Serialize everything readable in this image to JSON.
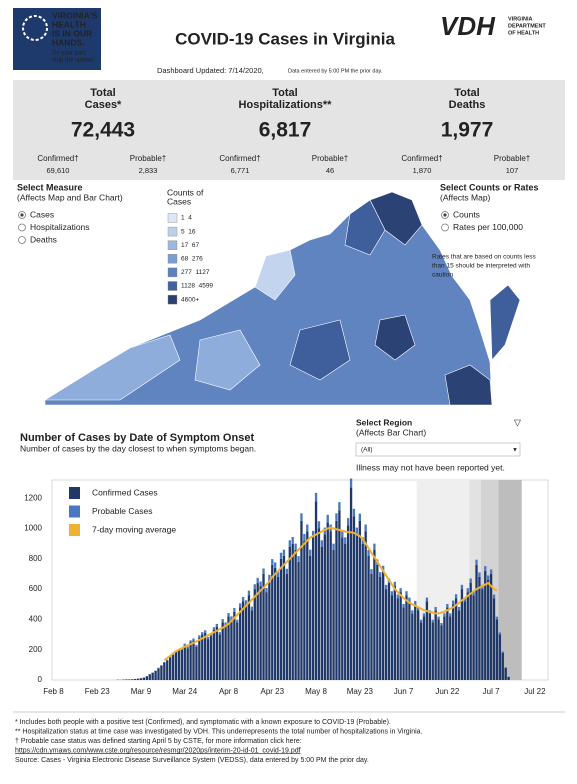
{
  "header": {
    "logo": [
      "VIRGINIA'S",
      "HEALTH",
      "IS IN OUR",
      "HANDS."
    ],
    "logo_tagline": [
      "Do your part,",
      "stop the spread."
    ],
    "title": "COVID-19 Cases in Virginia",
    "vdh": "VDH",
    "vdh_name": [
      "VIRGINIA",
      "DEPARTMENT",
      "OF HEALTH"
    ],
    "updated": "Dashboard Updated: 7/14/2020,",
    "updated_note": "Data entered by 5:00 PM the prior day."
  },
  "summary": [
    {
      "label": [
        "Total",
        "Cases*"
      ],
      "value": "72,443",
      "breakdown": [
        {
          "label": "Confirmed†",
          "value": "69,610"
        },
        {
          "label": "Probable†",
          "value": "2,833"
        }
      ]
    },
    {
      "label": [
        "Total",
        "Hospitalizations**"
      ],
      "value": "6,817",
      "breakdown": [
        {
          "label": "Confirmed†",
          "value": "6,771"
        },
        {
          "label": "Probable†",
          "value": "46"
        }
      ]
    },
    {
      "label": [
        "Total",
        "Deaths"
      ],
      "value": "1,977",
      "breakdown": [
        {
          "label": "Confirmed†",
          "value": "1,870"
        },
        {
          "label": "Probable†",
          "value": "107"
        }
      ]
    }
  ],
  "measure": {
    "title": "Select Measure",
    "subtitle": "(Affects Map and Bar Chart)",
    "options": [
      "Cases",
      "Hospitalizations",
      "Deaths"
    ],
    "selected": 0
  },
  "map_legend": {
    "title": [
      "Counts of",
      "Cases"
    ],
    "bins": [
      {
        "label": "1  4",
        "color": "#dde8f6"
      },
      {
        "label": "5  16",
        "color": "#bcd0eb"
      },
      {
        "label": "17  67",
        "color": "#9cb7e0"
      },
      {
        "label": "68  276",
        "color": "#7b9dd0"
      },
      {
        "label": "277  1127",
        "color": "#5b80bc"
      },
      {
        "label": "1128  4599",
        "color": "#40629f"
      },
      {
        "label": "4600+",
        "color": "#2a4170"
      }
    ]
  },
  "rates": {
    "title": "Select Counts or Rates",
    "subtitle": "(Affects Map)",
    "options": [
      "Counts",
      "Rates per 100,000"
    ],
    "selected": 0,
    "note": [
      "Rates that are based on counts less",
      "than 15 should be interpreted with",
      "caution"
    ]
  },
  "region": {
    "title": "Select Region",
    "subtitle": "(Affects Bar Chart)",
    "value": "(All)",
    "note": "Illness may not have been reported yet."
  },
  "chart_data": {
    "type": "bar",
    "stacked": true,
    "title": "Number of Cases by Date of Symptom Onset",
    "subtitle": "Number of cases by the day closest to when symptoms began.",
    "legend": "upper left",
    "grid": false,
    "categories": [
      "Feb 8",
      null,
      null,
      null,
      null,
      null,
      null,
      null,
      null,
      null,
      null,
      null,
      null,
      null,
      null,
      "Feb 23",
      null,
      null,
      null,
      null,
      null,
      null,
      null,
      null,
      null,
      null,
      null,
      null,
      null,
      null,
      "Mar 9",
      null,
      null,
      null,
      null,
      null,
      null,
      null,
      null,
      null,
      null,
      null,
      null,
      null,
      null,
      "Mar 24",
      null,
      null,
      null,
      null,
      null,
      null,
      null,
      null,
      null,
      null,
      null,
      null,
      null,
      null,
      "Apr 8",
      null,
      null,
      null,
      null,
      null,
      null,
      null,
      null,
      null,
      null,
      null,
      null,
      null,
      null,
      "Apr 23",
      null,
      null,
      null,
      null,
      null,
      null,
      null,
      null,
      null,
      null,
      null,
      null,
      null,
      null,
      "May 8",
      null,
      null,
      null,
      null,
      null,
      null,
      null,
      null,
      null,
      null,
      null,
      null,
      null,
      null,
      "May 23",
      null,
      null,
      null,
      null,
      null,
      null,
      null,
      null,
      null,
      null,
      null,
      null,
      null,
      null,
      "Jun 7",
      null,
      null,
      null,
      null,
      null,
      null,
      null,
      null,
      null,
      null,
      null,
      null,
      null,
      null,
      "Jun 22",
      null,
      null,
      null,
      null,
      null,
      null,
      null,
      null,
      null,
      null,
      null,
      null,
      null,
      null,
      "Jul 7",
      null,
      null,
      null,
      null,
      null,
      null,
      null,
      null,
      null,
      null,
      null,
      null,
      null,
      null,
      "Jul 22",
      null,
      null,
      null,
      null
    ],
    "series": [
      {
        "name": "Confirmed Cases",
        "type": "bar",
        "color": "#1f3868",
        "values": [
          null,
          null,
          null,
          null,
          null,
          null,
          null,
          null,
          null,
          null,
          null,
          null,
          null,
          null,
          null,
          null,
          null,
          null,
          null,
          null,
          null,
          null,
          2,
          1,
          3,
          4,
          4,
          5,
          7,
          9,
          12,
          16,
          25,
          38,
          48,
          60,
          78,
          95,
          115,
          130,
          150,
          165,
          185,
          195,
          200,
          230,
          210,
          250,
          260,
          220,
          280,
          300,
          310,
          270,
          290,
          330,
          350,
          300,
          380,
          360,
          420,
          400,
          450,
          380,
          480,
          520,
          500,
          560,
          460,
          600,
          640,
          620,
          700,
          580,
          660,
          760,
          740,
          680,
          800,
          820,
          700,
          880,
          900,
          860,
          780,
          1050,
          920,
          980,
          820,
          940,
          1180,
          1000,
          880,
          960,
          1040,
          980,
          860,
          1050,
          1120,
          940,
          900,
          1020,
          1270,
          1080,
          960,
          1050,
          900,
          980,
          820,
          700,
          860,
          760,
          680,
          720,
          600,
          640,
          560,
          620,
          540,
          580,
          480,
          560,
          520,
          440,
          500,
          460,
          380,
          420,
          520,
          440,
          380,
          460,
          400,
          360,
          420,
          480,
          420,
          500,
          540,
          460,
          600,
          520,
          580,
          640,
          560,
          760,
          680,
          600,
          720,
          660,
          700,
          540,
          400,
          300,
          180,
          80,
          20,
          null,
          null,
          null,
          null,
          null,
          null,
          null,
          null,
          null,
          null,
          null,
          null,
          null
        ]
      },
      {
        "name": "Probable Cases",
        "type": "bar",
        "color": "#4a78c0",
        "values": [
          null,
          null,
          null,
          null,
          null,
          null,
          null,
          null,
          null,
          null,
          null,
          null,
          null,
          null,
          null,
          null,
          null,
          null,
          null,
          null,
          null,
          null,
          0,
          0,
          0,
          0,
          0,
          0,
          0,
          0,
          0,
          0,
          1,
          1,
          2,
          2,
          3,
          3,
          4,
          4,
          5,
          6,
          6,
          7,
          8,
          10,
          12,
          12,
          14,
          12,
          15,
          16,
          18,
          14,
          16,
          18,
          20,
          16,
          22,
          20,
          22,
          20,
          25,
          18,
          26,
          28,
          26,
          30,
          24,
          32,
          34,
          30,
          36,
          28,
          34,
          38,
          36,
          34,
          40,
          40,
          34,
          42,
          44,
          40,
          38,
          50,
          44,
          46,
          40,
          44,
          55,
          48,
          42,
          46,
          50,
          46,
          40,
          50,
          54,
          44,
          42,
          48,
          60,
          50,
          46,
          48,
          42,
          46,
          38,
          32,
          40,
          36,
          32,
          34,
          28,
          30,
          26,
          28,
          24,
          26,
          22,
          26,
          24,
          20,
          22,
          20,
          18,
          20,
          24,
          20,
          18,
          22,
          18,
          16,
          20,
          22,
          20,
          24,
          26,
          22,
          28,
          24,
          26,
          30,
          26,
          34,
          30,
          28,
          32,
          30,
          30,
          24,
          18,
          14,
          8,
          4,
          2,
          null,
          null,
          null,
          null,
          null,
          null,
          null,
          null,
          null,
          null,
          null,
          null,
          null
        ]
      },
      {
        "name": "7-day moving average",
        "type": "line",
        "color": "#f0b030",
        "values": [
          null,
          null,
          null,
          null,
          null,
          null,
          null,
          null,
          null,
          null,
          null,
          null,
          null,
          null,
          null,
          null,
          null,
          null,
          null,
          null,
          null,
          null,
          null,
          null,
          null,
          null,
          null,
          null,
          null,
          null,
          null,
          null,
          null,
          null,
          null,
          null,
          null,
          null,
          130,
          145,
          160,
          175,
          190,
          200,
          210,
          220,
          228,
          236,
          245,
          255,
          265,
          275,
          285,
          295,
          305,
          315,
          325,
          335,
          345,
          355,
          370,
          390,
          410,
          430,
          450,
          470,
          490,
          510,
          530,
          550,
          570,
          590,
          610,
          630,
          650,
          680,
          700,
          720,
          740,
          760,
          780,
          800,
          820,
          840,
          860,
          880,
          900,
          920,
          940,
          950,
          960,
          970,
          980,
          990,
          1000,
          1005,
          1000,
          995,
          990,
          985,
          980,
          975,
          975,
          970,
          960,
          950,
          930,
          900,
          870,
          840,
          810,
          780,
          750,
          720,
          690,
          660,
          630,
          600,
          580,
          560,
          540,
          525,
          510,
          500,
          490,
          480,
          470,
          460,
          455,
          450,
          445,
          440,
          440,
          445,
          450,
          460,
          470,
          480,
          495,
          510,
          525,
          540,
          555,
          570,
          585,
          600,
          610,
          620,
          630,
          640,
          620,
          600,
          590,
          null,
          null,
          null,
          null,
          null,
          null,
          null,
          null,
          null,
          null,
          null,
          null,
          null,
          null,
          null,
          null,
          null
        ]
      }
    ],
    "ylim": [
      0,
      1320
    ],
    "yticks": [
      0,
      200,
      400,
      600,
      800,
      1000,
      1200
    ]
  },
  "footnotes": [
    "* Includes both people with a positive test (Confirmed), and symptomatic with a known exposure to COVID-19 (Probable).",
    "** Hospitalization status at time case was investigated by VDH. This underrepresents the total number of hospitalizations in Virginia.",
    "† Probable case status was defined starting April 5 by CSTE, for more information click here:"
  ],
  "link": "https://cdn.ymaws.com/www.cste.org/resource/resmgr/2020ps/interim-20-id-01_covid-19.pdf",
  "source": "Source:  Cases - Virginia Electronic Disease Surveillance System (VEDSS), data entered by 5:00 PM the prior day."
}
